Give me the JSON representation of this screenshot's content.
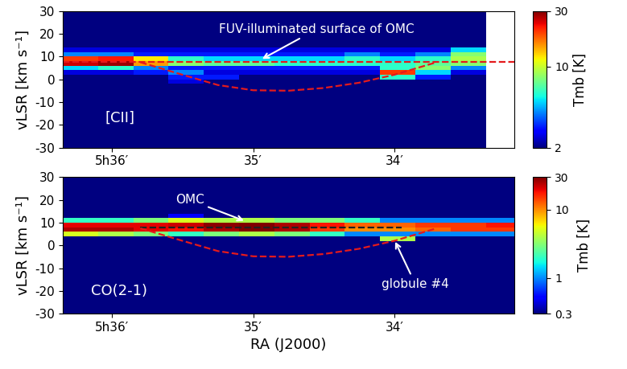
{
  "chart_data": [
    {
      "type": "heatmap",
      "ylabel": "vLSR [km s⁻¹]",
      "xlim": [
        36.35,
        33.15
      ],
      "xticks": [
        {
          "value": 36,
          "label": "5h36′"
        },
        {
          "value": 35,
          "label": "35′"
        },
        {
          "value": 34,
          "label": "34′"
        }
      ],
      "ylim": [
        -30,
        30
      ],
      "yticks": [
        -30,
        -20,
        -10,
        0,
        10,
        20,
        30
      ],
      "x_edges": [
        36.35,
        36.1,
        35.85,
        35.6,
        35.35,
        35.1,
        34.85,
        34.6,
        34.35,
        34.1,
        33.85,
        33.6,
        33.35,
        33.15
      ],
      "y_edges": [
        -30,
        -8,
        -6,
        -4,
        -2,
        0,
        2,
        4,
        6,
        8,
        10,
        12,
        14,
        30
      ],
      "cells": [
        [
          2,
          2,
          2,
          2,
          2,
          2,
          2,
          2,
          2,
          2,
          2,
          2,
          null
        ],
        [
          2,
          2,
          2,
          2,
          2,
          2,
          2,
          2,
          2,
          2,
          2,
          2,
          null
        ],
        [
          2,
          2,
          2,
          2,
          2,
          2,
          2,
          2,
          2,
          2,
          2,
          2,
          null
        ],
        [
          2,
          2,
          2,
          2,
          2,
          2,
          2,
          2,
          2,
          2,
          2,
          2,
          null
        ],
        [
          2,
          2,
          2,
          2.5,
          2,
          2,
          2,
          2,
          2,
          2,
          2,
          2,
          null
        ],
        [
          2,
          2,
          2,
          3,
          3,
          2,
          2,
          2,
          2,
          6,
          3,
          2,
          null
        ],
        [
          2.5,
          2.5,
          3,
          4,
          2.5,
          2.5,
          2.5,
          2.5,
          2.5,
          20,
          5,
          2.5,
          null
        ],
        [
          5,
          6,
          4,
          3,
          3,
          3,
          3,
          3,
          3,
          6,
          8,
          4,
          null
        ],
        [
          25,
          28,
          15,
          8,
          7,
          7,
          6,
          6,
          6,
          6,
          7,
          8,
          null
        ],
        [
          20,
          22,
          12,
          6,
          5,
          5,
          5,
          5,
          6,
          5,
          6,
          9,
          null
        ],
        [
          4,
          4,
          3,
          3,
          3,
          3,
          3,
          3,
          4,
          3,
          4,
          8,
          null
        ],
        [
          2.5,
          2.5,
          2.5,
          2.5,
          2.5,
          2.5,
          2.5,
          2.5,
          2.5,
          2.5,
          2.5,
          5,
          null
        ],
        [
          2,
          2,
          2,
          2,
          2,
          2,
          2,
          2,
          2,
          2,
          2,
          2,
          null
        ]
      ],
      "colorbar": {
        "range": [
          2,
          30
        ],
        "ticks": [
          2,
          10,
          30
        ],
        "label": "Tmb [K]"
      },
      "lines": [
        {
          "x": [
            36.35,
            33.15
          ],
          "y": [
            7.5,
            7.5
          ],
          "color": "#e41a1c",
          "line_style": "dashed"
        },
        {
          "x": [
            35.8,
            35.5,
            35.25,
            35.0,
            34.75,
            34.5,
            34.25,
            34.0,
            33.7
          ],
          "y": [
            7.5,
            2,
            -2.5,
            -4.8,
            -5,
            -3.8,
            -1.5,
            2,
            7.5
          ],
          "color": "#e41a1c",
          "line_style": "dashed"
        }
      ],
      "annotations": [
        {
          "text": "FUV-illuminated surface of OMC",
          "x": 34.55,
          "y": 22,
          "target": [
            34.95,
            8.5
          ]
        },
        {
          "text": "[CII]",
          "x": 36.05,
          "y": -17
        }
      ]
    },
    {
      "type": "heatmap",
      "ylabel": "vLSR [km s⁻¹]",
      "xlabel": "RA (J2000)",
      "xlim": [
        36.35,
        33.15
      ],
      "xticks": [
        {
          "value": 36,
          "label": "5h36′"
        },
        {
          "value": 35,
          "label": "35′"
        },
        {
          "value": 34,
          "label": "34′"
        }
      ],
      "ylim": [
        -30,
        30
      ],
      "yticks": [
        -30,
        -20,
        -10,
        0,
        10,
        20,
        30
      ],
      "x_edges": [
        36.35,
        36.1,
        35.85,
        35.6,
        35.35,
        35.1,
        34.85,
        34.6,
        34.35,
        34.1,
        33.85,
        33.6,
        33.35,
        33.15
      ],
      "y_edges": [
        -30,
        -8,
        -6,
        -4,
        -2,
        0,
        2,
        4,
        6,
        8,
        10,
        12,
        14,
        30
      ],
      "cells": [
        [
          0.3,
          0.3,
          0.3,
          0.3,
          0.3,
          0.3,
          0.3,
          0.3,
          0.3,
          0.3,
          0.3,
          0.3,
          0.3
        ],
        [
          0.3,
          0.3,
          0.3,
          0.3,
          0.3,
          0.3,
          0.3,
          0.3,
          0.3,
          0.3,
          0.3,
          0.3,
          0.3
        ],
        [
          0.3,
          0.3,
          0.3,
          0.3,
          0.3,
          0.3,
          0.3,
          0.3,
          0.3,
          0.3,
          0.3,
          0.3,
          0.3
        ],
        [
          0.3,
          0.3,
          0.3,
          0.3,
          0.3,
          0.3,
          0.3,
          0.3,
          0.3,
          0.3,
          0.3,
          0.3,
          0.3
        ],
        [
          0.3,
          0.3,
          0.3,
          0.3,
          0.3,
          0.3,
          0.3,
          0.3,
          0.3,
          0.3,
          0.3,
          0.3,
          0.3
        ],
        [
          0.3,
          0.3,
          0.3,
          0.3,
          0.3,
          0.3,
          0.3,
          0.3,
          0.3,
          0.3,
          0.3,
          0.3,
          0.3
        ],
        [
          0.3,
          0.3,
          0.3,
          0.3,
          0.3,
          0.3,
          0.3,
          0.3,
          0.3,
          4,
          0.3,
          0.3,
          0.3
        ],
        [
          5,
          4,
          3,
          2,
          3,
          4,
          3,
          2,
          1,
          1,
          1,
          1,
          1
        ],
        [
          25,
          25,
          20,
          18,
          25,
          30,
          25,
          15,
          10,
          10,
          12,
          15,
          15
        ],
        [
          20,
          20,
          20,
          22,
          28,
          30,
          25,
          18,
          12,
          12,
          15,
          15,
          18
        ],
        [
          2,
          2,
          3,
          5,
          4,
          4,
          3,
          3,
          2,
          1,
          1,
          1,
          1
        ],
        [
          0.3,
          0.3,
          0.3,
          0.5,
          0.3,
          0.3,
          0.3,
          0.3,
          0.3,
          0.3,
          0.3,
          0.3,
          0.3
        ],
        [
          0.3,
          0.3,
          0.3,
          0.3,
          0.3,
          0.3,
          0.3,
          0.3,
          0.3,
          0.3,
          0.3,
          0.3,
          0.3
        ]
      ],
      "colorbar": {
        "range": [
          0.3,
          30
        ],
        "ticks": [
          0.3,
          1,
          10,
          30
        ],
        "label": "Tmb [K]"
      },
      "lines": [
        {
          "x": [
            35.8,
            33.95
          ],
          "y": [
            8,
            8
          ],
          "color": "#222222",
          "line_style": "dashed"
        },
        {
          "x": [
            35.8,
            35.5,
            35.25,
            35.0,
            34.75,
            34.5,
            34.25,
            34.0,
            33.7
          ],
          "y": [
            7.5,
            2,
            -2.5,
            -4.8,
            -5,
            -3.8,
            -1.5,
            2,
            7.5
          ],
          "color": "#e41a1c",
          "line_style": "dashed"
        }
      ],
      "annotations": [
        {
          "text": "OMC",
          "x": 35.45,
          "y": 20,
          "target": [
            35.05,
            10.5
          ]
        },
        {
          "text": "globule #4",
          "x": 33.85,
          "y": -17,
          "target": [
            34.0,
            2.5
          ]
        },
        {
          "text": "CO(2-1)",
          "x": 36.15,
          "y": -20
        }
      ]
    }
  ]
}
